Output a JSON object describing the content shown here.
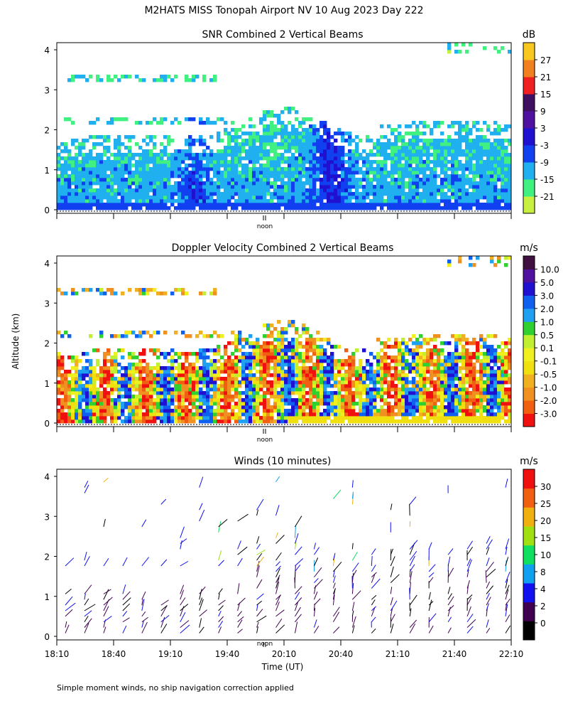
{
  "figure": {
    "title": "M2HATS MISS Tonopah Airport NV  10 Aug 2023 Day 222",
    "ylabel": "Altitude (km)",
    "xlabel": "Time (UT)",
    "footnote": "Simple moment winds, no ship navigation correction applied",
    "noon_label": "noon"
  },
  "chart_data": [
    {
      "type": "heatmap",
      "title": "SNR Combined 2 Vertical Beams",
      "ylim": [
        0,
        4
      ],
      "y_ticks": [
        "0",
        "1",
        "2",
        "3",
        "4"
      ],
      "xlim": [
        "18:10",
        "22:10"
      ],
      "colorbar": {
        "unit": "dB",
        "labels": [
          "-21",
          "-15",
          "-9",
          "-3",
          "3",
          "9",
          "15",
          "21",
          "27"
        ],
        "colors": [
          "#c8f040",
          "#40f080",
          "#20b0f0",
          "#1040f0",
          "#2010d0",
          "#5010a0",
          "#401060",
          "#f02020",
          "#f08020",
          "#f8c820"
        ]
      }
    },
    {
      "type": "heatmap",
      "title": "Doppler Velocity Combined 2 Vertical Beams",
      "ylim": [
        0,
        4
      ],
      "y_ticks": [
        "0",
        "1",
        "2",
        "3",
        "4"
      ],
      "xlim": [
        "18:10",
        "22:10"
      ],
      "colorbar": {
        "unit": "m/s",
        "labels": [
          "-3.0",
          "-2.0",
          "-1.0",
          "-0.5",
          "-0.1",
          "0.1",
          "0.5",
          "1.0",
          "2.0",
          "3.0",
          "5.0",
          "10.0"
        ],
        "colors": [
          "#f01010",
          "#f06010",
          "#f09020",
          "#f0b020",
          "#f0e010",
          "#f0f020",
          "#c0f030",
          "#30d030",
          "#20a0f0",
          "#1060f0",
          "#2010d0",
          "#5010a0",
          "#401040"
        ]
      }
    },
    {
      "type": "scatter",
      "title": "Winds (10 minutes)",
      "ylim": [
        0,
        4
      ],
      "y_ticks": [
        "0",
        "1",
        "2",
        "3",
        "4"
      ],
      "x_ticks": [
        "18:10",
        "18:40",
        "19:10",
        "19:40",
        "20:10",
        "20:40",
        "21:10",
        "21:40",
        "22:10"
      ],
      "colorbar": {
        "unit": "m/s",
        "labels": [
          "0",
          "2",
          "4",
          "8",
          "10",
          "15",
          "20",
          "25",
          "30"
        ],
        "colors": [
          "#000000",
          "#400050",
          "#1010f0",
          "#10a0f0",
          "#10e060",
          "#a0e010",
          "#f0b010",
          "#f06010",
          "#f01010"
        ]
      }
    }
  ]
}
